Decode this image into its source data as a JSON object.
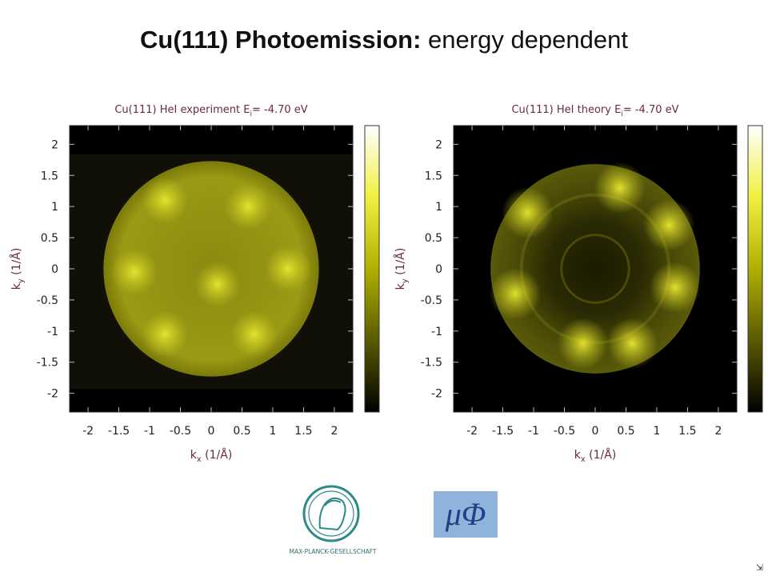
{
  "slide": {
    "title_bold": "Cu(111) Photoemission:",
    "title_normal": "energy dependent"
  },
  "chart_data": [
    {
      "type": "heatmap",
      "title": "Cu(111) HeI experiment  E",
      "title_sub": "i",
      "title_value": "=  -4.70 eV",
      "xlabel_main": "k",
      "xlabel_sub": "x",
      "xlabel_unit": " (1/Å)",
      "ylabel_main": "k",
      "ylabel_sub": "y",
      "ylabel_unit": " (1/Å)",
      "xlim": [
        -2.3,
        2.3
      ],
      "ylim": [
        -2.3,
        2.3
      ],
      "xticks": [
        -2,
        -1.5,
        -1,
        -0.5,
        0,
        0.5,
        1,
        1.5,
        2
      ],
      "xtick_labels": [
        "-2",
        "-1.5",
        "-1",
        "-0.5",
        "0",
        "0.5",
        "1",
        "1.5",
        "2"
      ],
      "yticks": [
        2,
        1.5,
        1,
        0.5,
        0,
        -0.5,
        -1,
        -1.5,
        -2
      ],
      "ytick_labels": [
        "2",
        "1.5",
        "1",
        "0.5",
        "0",
        "-0.5",
        "-1",
        "-1.5",
        "-2"
      ],
      "colorscale": [
        "#000000",
        "#5a5a00",
        "#b0b000",
        "#f0f040",
        "#ffffff"
      ],
      "disk_radius": 1.75,
      "hotspots": [
        {
          "kx": -0.75,
          "ky": 1.1
        },
        {
          "kx": 0.6,
          "ky": 1.0
        },
        {
          "kx": 1.25,
          "ky": 0.0
        },
        {
          "kx": 0.7,
          "ky": -1.05
        },
        {
          "kx": -0.75,
          "ky": -1.05
        },
        {
          "kx": -1.25,
          "ky": -0.05
        },
        {
          "kx": 0.1,
          "ky": -0.25
        }
      ]
    },
    {
      "type": "heatmap",
      "title": "Cu(111) HeI theory  E",
      "title_sub": "i",
      "title_value": "=  -4.70 eV",
      "xlabel_main": "k",
      "xlabel_sub": "x",
      "xlabel_unit": " (1/Å)",
      "ylabel_main": "k",
      "ylabel_sub": "y",
      "ylabel_unit": " (1/Å)",
      "xlim": [
        -2.3,
        2.3
      ],
      "ylim": [
        -2.3,
        2.3
      ],
      "xticks": [
        -2,
        -1.5,
        -1,
        -0.5,
        0,
        0.5,
        1,
        1.5,
        2
      ],
      "xtick_labels": [
        "-2",
        "-1.5",
        "-1",
        "-0.5",
        "0",
        "0.5",
        "1",
        "1.5",
        "2"
      ],
      "yticks": [
        2,
        1.5,
        1,
        0.5,
        0,
        -0.5,
        -1,
        -1.5,
        -2
      ],
      "ytick_labels": [
        "2",
        "1.5",
        "1",
        "0.5",
        "0",
        "-0.5",
        "-1",
        "-1.5",
        "-2"
      ],
      "colorscale": [
        "#000000",
        "#5a5a00",
        "#b0b000",
        "#f0f040",
        "#ffffff"
      ],
      "disk_radius": 1.7,
      "hotspots": [
        {
          "kx": -1.1,
          "ky": 0.9
        },
        {
          "kx": 0.4,
          "ky": 1.3
        },
        {
          "kx": 1.2,
          "ky": 0.7
        },
        {
          "kx": 1.3,
          "ky": -0.3
        },
        {
          "kx": 0.6,
          "ky": -1.2
        },
        {
          "kx": -0.2,
          "ky": -1.2
        },
        {
          "kx": -1.3,
          "ky": -0.4
        }
      ]
    }
  ],
  "logos": {
    "mpg_text": "MAX-PLANCK-GESELLSCHAFT",
    "mu_text": "μΦ"
  },
  "corner_icon": "⇲"
}
